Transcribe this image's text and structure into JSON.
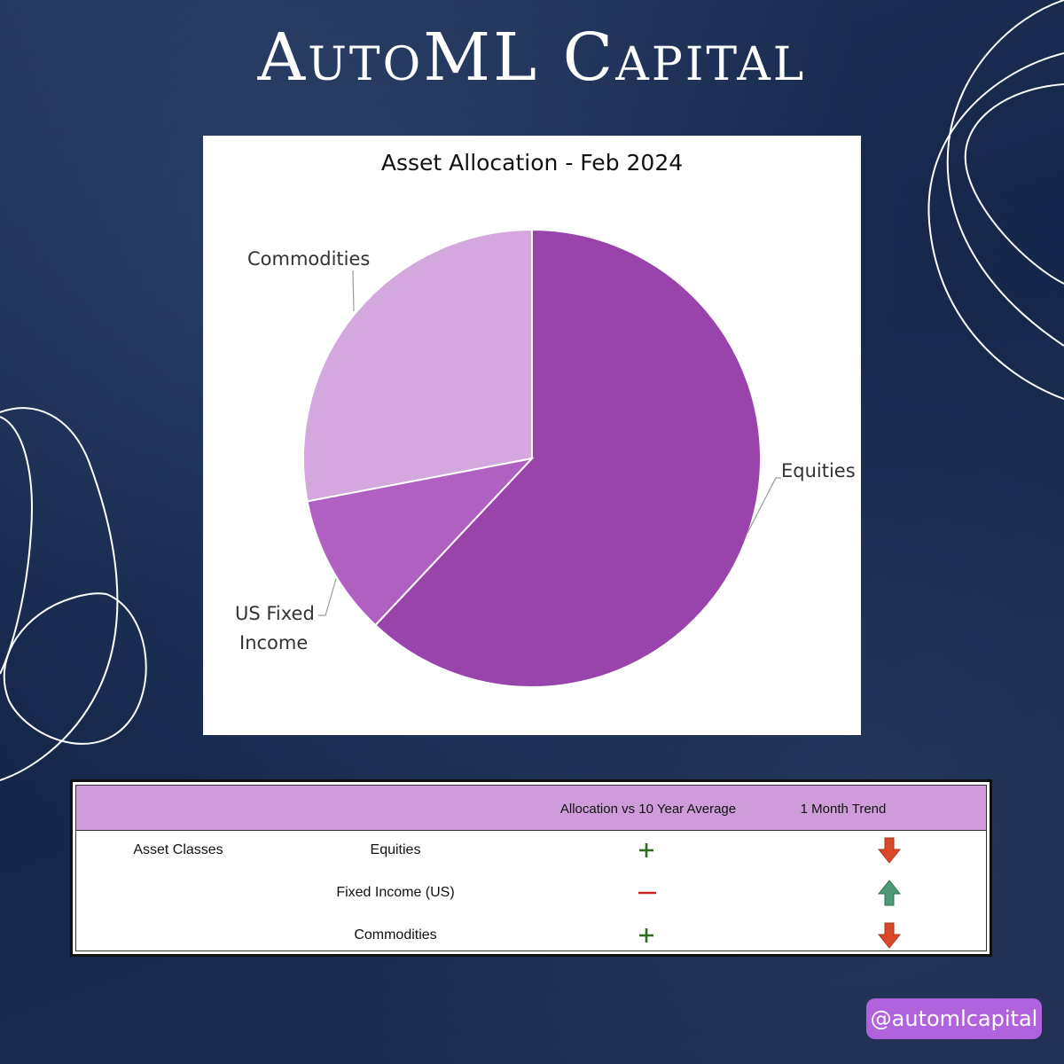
{
  "brand": {
    "title": "AutoML Capital"
  },
  "chart_data": {
    "type": "pie",
    "title": "Asset Allocation - Feb 2024",
    "categories": [
      "Equities",
      "US Fixed Income",
      "Commodities"
    ],
    "values": [
      62,
      10,
      28
    ],
    "colors": [
      "#9944aa",
      "#b060c0",
      "#d4a8de"
    ],
    "label_lines": {
      "equities": "Equities",
      "fixed_1": "US Fixed",
      "fixed_2": "Income",
      "commodities": "Commodities"
    }
  },
  "table": {
    "headers": {
      "allocation": "Allocation vs 10 Year Average",
      "trend": "1 Month Trend"
    },
    "group_label": "Asset Classes",
    "rows": [
      {
        "name": "Equities",
        "allocation": "plus",
        "trend": "down"
      },
      {
        "name": "Fixed Income (US)",
        "allocation": "minus",
        "trend": "up"
      },
      {
        "name": "Commodities",
        "allocation": "plus",
        "trend": "down"
      }
    ]
  },
  "colors": {
    "header_bg": "#cf9bdb",
    "plus": "#2e6b1f",
    "minus": "#cc2222",
    "down_arrow": "#d9482b",
    "up_arrow": "#4c9a78",
    "handle_bg": "#b063dd"
  },
  "handle": "@automlcapital"
}
